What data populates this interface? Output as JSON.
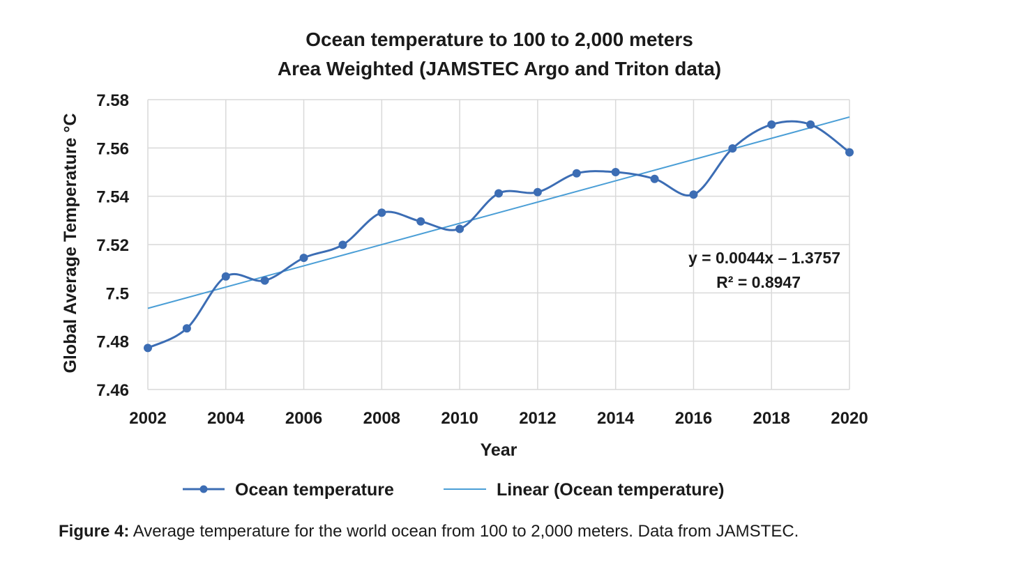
{
  "colors": {
    "series": "#3c6db4",
    "trend": "#4a9ed6",
    "grid": "#d9d9d9",
    "text": "#1a1a1a"
  },
  "caption": {
    "label": "Figure 4:",
    "text": "Average temperature for the world ocean from 100 to 2,000 meters. Data from JAMSTEC."
  },
  "chart_data": {
    "type": "line",
    "title": "Ocean temperature to 100 to 2,000 meters",
    "subtitle": "Area Weighted (JAMSTEC Argo and Triton data)",
    "xlabel": "Year",
    "ylabel": "Global Average Temperature °C",
    "xlim": [
      2002,
      2020
    ],
    "ylim": [
      7.46,
      7.58
    ],
    "x_ticks": [
      "2002",
      "2004",
      "2006",
      "2008",
      "2010",
      "2012",
      "2014",
      "2016",
      "2018",
      "2020"
    ],
    "y_ticks": [
      "7.46",
      "7.48",
      "7.5",
      "7.52",
      "7.54",
      "7.56",
      "7.58"
    ],
    "grid": true,
    "legend_position": "bottom",
    "series": [
      {
        "name": "Ocean temperature",
        "style": "smoothed line with markers",
        "x": [
          2002,
          2003,
          2004,
          2005,
          2006,
          2007,
          2008,
          2009,
          2010,
          2011,
          2012,
          2013,
          2014,
          2015,
          2016,
          2017,
          2018,
          2019,
          2020
        ],
        "values": [
          7.4772,
          7.4853,
          7.5068,
          7.5051,
          7.5145,
          7.5199,
          7.5332,
          7.5296,
          7.5265,
          7.5412,
          7.5417,
          7.5495,
          7.55,
          7.5472,
          7.5407,
          7.5598,
          7.5697,
          7.5697,
          7.5582
        ]
      },
      {
        "name": "Linear (Ocean temperature)",
        "style": "line",
        "x": [
          2002,
          2020
        ],
        "values": [
          7.4936,
          7.5728
        ]
      }
    ],
    "annotations": {
      "equation": "y = 0.0044x – 1.3757",
      "r_squared_label": "R² = 0.8947"
    }
  }
}
